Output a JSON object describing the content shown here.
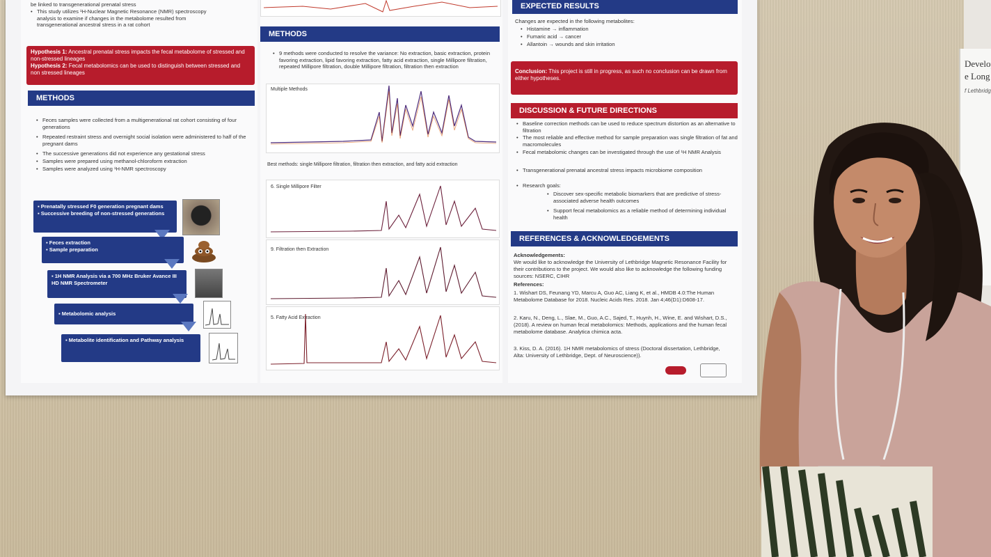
{
  "poster": {
    "intro_lines": [
      "be linked to transgenerational prenatal stress",
      "This study utilizes ¹H-Nuclear Magnetic Resonance (NMR) spectroscopy",
      "analysis to examine if changes in the metabolome resulted from",
      "transgenerational ancestral stress in a rat cohort"
    ],
    "hypothesis1_label": "Hypothesis 1:",
    "hypothesis1_text": "Ancestral prenatal stress impacts the fecal metabolome of stressed and non-stressed lineages",
    "hypothesis2_label": "Hypothesis 2:",
    "hypothesis2_text": "Fecal metabolomics can be used to distinguish between stressed and non stressed lineages",
    "methods_left": {
      "heading": "METHODS",
      "bullets": [
        "Feces samples were collected from a multigenerational rat cohort consisting of four generations",
        "Repeated restraint stress and overnight social isolation were administered to half of the pregnant dams",
        "The successive generations did not experience any gestational stress",
        "Samples were prepared using methanol-chloroform extraction",
        "Samples were analyzed using ¹H-NMR spectroscopy"
      ],
      "flow": [
        "Prenatally stressed F0 generation pregnant dams",
        "Successive breeding of non-stressed generations",
        "Feces extraction",
        "Sample preparation",
        "1H NMR Analysis via a 700 MHz Bruker Avance III HD NMR Spectrometer",
        "Metabolomic analysis",
        "Metabolite identification and Pathway analysis"
      ]
    },
    "methods_mid": {
      "heading": "METHODS",
      "bullet": "9 methods were conducted to resolve the variance: No extraction, basic extraction, protein favoring extraction, lipid favoring extraction, fatty acid extraction, single Millipore filtration, repeated Millipore filtration, double Millipore filtration, filtration then extraction",
      "multi_label": "Multiple Methods",
      "best_methods": "Best methods: single Millipore filtration, filtration then extraction, and fatty acid extraction",
      "panel1": "6. Single Millipore Filter",
      "panel2": "9. Filtration then Extraction",
      "panel3": "5. Fatty Acid Extraction"
    },
    "expected": {
      "heading": "EXPECTED RESULTS",
      "intro": "Changes are expected in the following metabolites:",
      "items": [
        "Histamine → inflammation",
        "Fumaric acid → cancer",
        "Allantoin → wounds and skin irritation"
      ]
    },
    "conclusion_label": "Conclusion:",
    "conclusion_text": "This project is still in progress, as such no conclusion can be drawn from either hypotheses.",
    "discussion": {
      "heading": "DISCUSSION & FUTURE DIRECTIONS",
      "items": [
        "Baseline correction methods can be used to reduce spectrum distortion as an alternative to filtration",
        "The most reliable and effective method for sample preparation was single filtration of fat and macromolecules",
        "Fecal metabolomic changes can be investigated through the use of ¹H NMR Analysis",
        "Transgenerational prenatal ancestral stress impacts microbiome composition",
        "Research goals:"
      ],
      "goals": [
        "Discover sex-specific metabolic biomarkers that are predictive of stress-associated adverse health outcomes",
        "Support fecal metabolomics as a reliable method of determining individual health"
      ]
    },
    "references": {
      "heading": "REFERENCES & ACKNOWLEDGEMENTS",
      "ack_label": "Acknowledgements:",
      "ack_text": "We would like to acknowledge the University of Lethbridge Magnetic Resonance Facility for their contributions to the project. We would also like to acknowledge the following funding sources: NSERC, CIHR",
      "ref_label": "References:",
      "refs": [
        "1. Wishart DS, Feunang YD, Marcu A, Guo AC, Liang K, et al., HMDB 4.0:The Human Metabolome Database for 2018. Nucleic Acids Res. 2018. Jan 4;46(D1):D608-17.",
        "2. Karu, N., Deng, L., Slae, M., Guo, A.C., Sajed, T., Huynh, H., Wine, E. and Wishart, D.S., (2018). A review on human fecal metabolomics: Methods, applications and the human fecal metabolome database. Analytica chimica acta.",
        "3. Kiss, D. A. (2016). 1H NMR metabolomics of stress (Doctoral dissertation, Lethbridge, Alta: University of Lethbridge, Dept. of Neuroscience))."
      ]
    }
  },
  "right_poster": {
    "line1": "Develop",
    "line2": "e Long",
    "line3": "f Lethbridge"
  },
  "colors": {
    "poster_blue": "#233a86",
    "poster_red": "#b71c2c",
    "board": "#cdbfa6"
  }
}
